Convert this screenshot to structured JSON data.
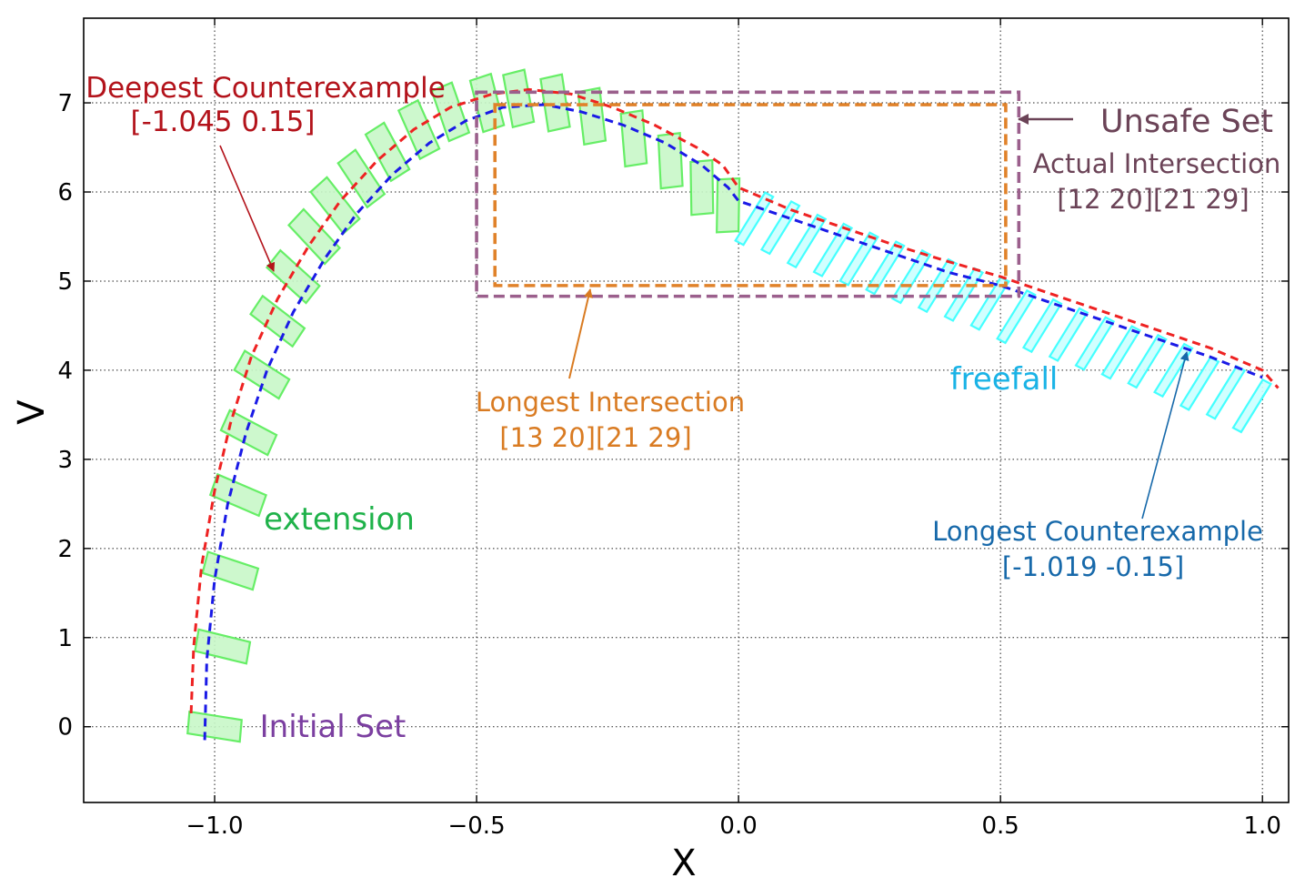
{
  "chart_data": {
    "type": "line",
    "xlabel": "X",
    "ylabel": "V",
    "xlim": [
      -1.25,
      1.05
    ],
    "ylim": [
      -0.85,
      7.95
    ],
    "xticks": [
      -1.0,
      -0.5,
      0.0,
      0.5,
      1.0
    ],
    "xtick_labels": [
      "−1.0",
      "−0.5",
      "0.0",
      "0.5",
      "1.0"
    ],
    "yticks": [
      0,
      1,
      2,
      3,
      4,
      5,
      6,
      7
    ],
    "ytick_labels": [
      "0",
      "1",
      "2",
      "3",
      "4",
      "5",
      "6",
      "7"
    ],
    "grid": true,
    "grid_style": "dotted",
    "colors": {
      "extension_fill": "#c8f7c8",
      "extension_edge": "#66ee66",
      "freefall_fill": "#ccffff",
      "freefall_edge": "#44ffff",
      "deepest": "#ee2222",
      "longest": "#1a1ae6",
      "unsafe": "#9b5f8c",
      "intersection": "#e0822a"
    },
    "series": [
      {
        "name": "Deepest Counterexample",
        "style": "dashed",
        "x": [
          -1.045,
          -1.04,
          -1.025,
          -1.0,
          -0.97,
          -0.93,
          -0.88,
          -0.82,
          -0.76,
          -0.69,
          -0.62,
          -0.55,
          -0.47,
          -0.4,
          -0.32,
          -0.24,
          -0.16,
          -0.08,
          -0.03,
          0.0,
          0.1,
          0.2,
          0.3,
          0.4,
          0.5,
          0.6,
          0.7,
          0.8,
          0.9,
          1.0,
          1.03
        ],
        "y": [
          0.15,
          0.9,
          1.8,
          2.65,
          3.4,
          4.15,
          4.8,
          5.4,
          5.9,
          6.35,
          6.7,
          6.95,
          7.1,
          7.15,
          7.1,
          6.95,
          6.75,
          6.5,
          6.3,
          6.05,
          5.8,
          5.6,
          5.4,
          5.22,
          5.05,
          4.85,
          4.65,
          4.45,
          4.25,
          4.0,
          3.8
        ]
      },
      {
        "name": "Longest Counterexample",
        "style": "dashed",
        "x": [
          -1.019,
          -1.015,
          -1.0,
          -0.975,
          -0.94,
          -0.9,
          -0.85,
          -0.79,
          -0.73,
          -0.66,
          -0.59,
          -0.52,
          -0.45,
          -0.37,
          -0.3,
          -0.22,
          -0.14,
          -0.07,
          -0.02,
          0.0,
          0.1,
          0.2,
          0.3,
          0.4,
          0.5,
          0.6,
          0.7,
          0.8,
          0.9,
          1.0
        ],
        "y": [
          -0.15,
          0.75,
          1.65,
          2.5,
          3.3,
          4.0,
          4.65,
          5.25,
          5.75,
          6.2,
          6.55,
          6.8,
          6.95,
          6.98,
          6.9,
          6.75,
          6.55,
          6.3,
          6.05,
          5.9,
          5.7,
          5.5,
          5.3,
          5.1,
          4.95,
          4.75,
          4.55,
          4.35,
          4.15,
          3.92
        ]
      }
    ],
    "extension_boxes_centers": [
      [
        -1.0,
        0.0
      ],
      [
        -0.985,
        0.9
      ],
      [
        -0.97,
        1.75
      ],
      [
        -0.955,
        2.6
      ],
      [
        -0.935,
        3.3
      ],
      [
        -0.91,
        3.95
      ],
      [
        -0.88,
        4.55
      ],
      [
        -0.85,
        5.05
      ],
      [
        -0.81,
        5.5
      ],
      [
        -0.77,
        5.85
      ],
      [
        -0.72,
        6.15
      ],
      [
        -0.67,
        6.45
      ],
      [
        -0.61,
        6.7
      ],
      [
        -0.55,
        6.9
      ],
      [
        -0.48,
        7.0
      ],
      [
        -0.42,
        7.05
      ],
      [
        -0.35,
        7.0
      ],
      [
        -0.28,
        6.85
      ],
      [
        -0.2,
        6.6
      ],
      [
        -0.13,
        6.35
      ],
      [
        -0.07,
        6.05
      ],
      [
        -0.02,
        5.85
      ]
    ],
    "freefall_boxes_centers": [
      [
        0.03,
        5.7
      ],
      [
        0.08,
        5.6
      ],
      [
        0.13,
        5.45
      ],
      [
        0.18,
        5.35
      ],
      [
        0.23,
        5.25
      ],
      [
        0.28,
        5.15
      ],
      [
        0.33,
        5.05
      ],
      [
        0.38,
        4.95
      ],
      [
        0.43,
        4.85
      ],
      [
        0.48,
        4.75
      ],
      [
        0.53,
        4.6
      ],
      [
        0.58,
        4.5
      ],
      [
        0.63,
        4.4
      ],
      [
        0.68,
        4.3
      ],
      [
        0.73,
        4.2
      ],
      [
        0.78,
        4.1
      ],
      [
        0.83,
        4.0
      ],
      [
        0.88,
        3.85
      ],
      [
        0.93,
        3.75
      ],
      [
        0.98,
        3.6
      ]
    ],
    "regions": [
      {
        "name": "Unsafe Set",
        "x": [
          -0.5,
          0.535
        ],
        "y": [
          4.83,
          7.12
        ]
      },
      {
        "name": "Longest Intersection",
        "x": [
          -0.465,
          0.51
        ],
        "y": [
          4.95,
          6.98
        ]
      }
    ],
    "annotations": {
      "deepest_title": "Deepest Counterexample",
      "deepest_value": "[-1.045 0.15]",
      "longest_ce_title": "Longest Counterexample",
      "longest_ce_value": "[-1.019 -0.15]",
      "unsafe_label": "Unsafe Set",
      "actual_title": "Actual Intersection",
      "actual_value": "[12 20][21 29]",
      "longest_int_title": "Longest Intersection",
      "longest_int_value": "[13 20][21 29]",
      "extension": "extension",
      "freefall": "freefall",
      "initial_set": "Initial Set"
    }
  }
}
